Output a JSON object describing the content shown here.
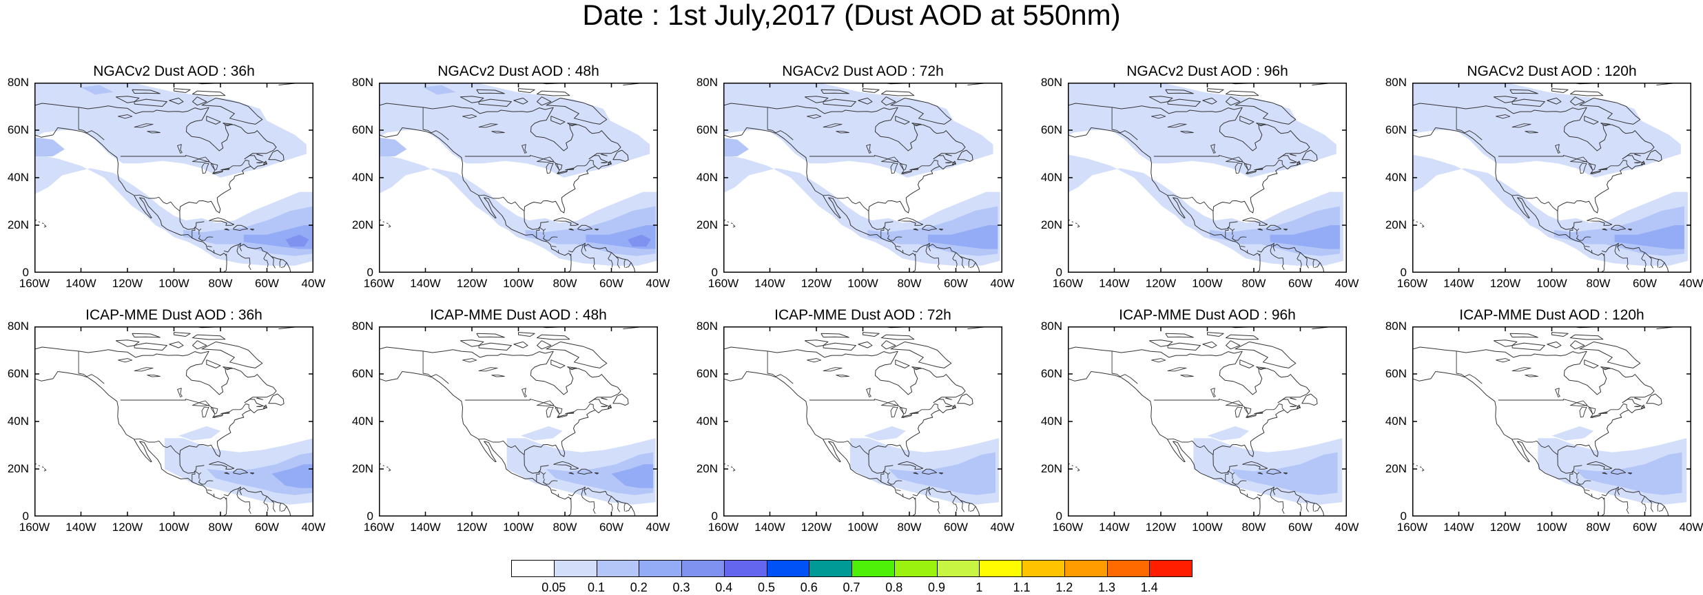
{
  "title": "Date : 1st July,2017 (Dust AOD at 550nm)",
  "x_ticks": [
    "160W",
    "140W",
    "120W",
    "100W",
    "80W",
    "60W",
    "40W"
  ],
  "y_ticks": [
    "80N",
    "60N",
    "40N",
    "20N",
    "0"
  ],
  "rows": [
    {
      "model": "NGACv2",
      "panels": [
        {
          "title": "NGACv2 Dust AOD : 36h",
          "lead": "36h"
        },
        {
          "title": "NGACv2 Dust AOD : 48h",
          "lead": "48h"
        },
        {
          "title": "NGACv2 Dust AOD : 72h",
          "lead": "72h"
        },
        {
          "title": "NGACv2 Dust AOD : 96h",
          "lead": "96h"
        },
        {
          "title": "NGACv2 Dust AOD : 120h",
          "lead": "120h"
        }
      ]
    },
    {
      "model": "ICAP-MME",
      "panels": [
        {
          "title": "ICAP-MME Dust AOD : 36h",
          "lead": "36h"
        },
        {
          "title": "ICAP-MME Dust AOD : 48h",
          "lead": "48h"
        },
        {
          "title": "ICAP-MME Dust AOD : 72h",
          "lead": "72h"
        },
        {
          "title": "ICAP-MME Dust AOD : 96h",
          "lead": "96h"
        },
        {
          "title": "ICAP-MME Dust AOD : 120h",
          "lead": "120h"
        }
      ]
    }
  ],
  "colorbar": {
    "labels": [
      "0.05",
      "0.1",
      "0.2",
      "0.3",
      "0.4",
      "0.5",
      "0.6",
      "0.7",
      "0.8",
      "0.9",
      "1",
      "1.1",
      "1.2",
      "1.3",
      "1.4"
    ],
    "colors": [
      "#ffffff",
      "#d3defb",
      "#b4c6f8",
      "#94abf5",
      "#7f92f0",
      "#6466f0",
      "#0052f7",
      "#009a96",
      "#4ef00a",
      "#9af20e",
      "#c8f442",
      "#fffb00",
      "#ffc300",
      "#ff9c00",
      "#ff6a00",
      "#ff1e00"
    ]
  },
  "map_colors": {
    "background": "#ffffff",
    "dust_low": "#d3defb",
    "dust_mid": "#b4c6f8",
    "dust_high": "#94abf5",
    "dust_peak": "#7f92f0",
    "coast": "#333333"
  }
}
